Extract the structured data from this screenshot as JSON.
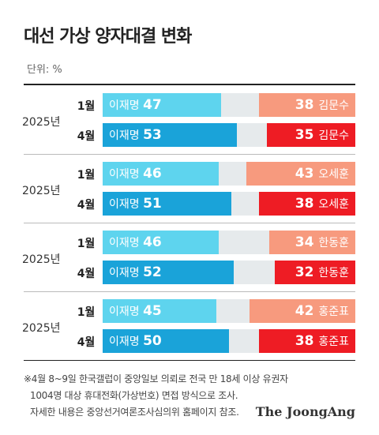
{
  "title": "대선 가상 양자대결 변화",
  "unit": "단위: %",
  "colors": {
    "lee_april": "#1aa3d9",
    "lee_jan": "#5ed4ee",
    "opp_april": "#ee1c24",
    "opp_jan": "#f79a7e",
    "undecided": "#e6eaec"
  },
  "chart_data": {
    "type": "bar",
    "stacked": true,
    "orientation": "horizontal",
    "xlim": [
      0,
      100
    ],
    "groups": [
      {
        "year": "2025년",
        "opponent": "김문수",
        "rows": [
          {
            "month": "1월",
            "lee_label": "이재명",
            "lee": 47,
            "opp": 38,
            "opp_label": "김문수"
          },
          {
            "month": "4월",
            "lee_label": "이재명",
            "lee": 53,
            "opp": 35,
            "opp_label": "김문수"
          }
        ]
      },
      {
        "year": "2025년",
        "opponent": "오세훈",
        "rows": [
          {
            "month": "1월",
            "lee_label": "이재명",
            "lee": 46,
            "opp": 43,
            "opp_label": "오세훈"
          },
          {
            "month": "4월",
            "lee_label": "이재명",
            "lee": 51,
            "opp": 38,
            "opp_label": "오세훈"
          }
        ]
      },
      {
        "year": "2025년",
        "opponent": "한동훈",
        "rows": [
          {
            "month": "1월",
            "lee_label": "이재명",
            "lee": 46,
            "opp": 34,
            "opp_label": "한동훈"
          },
          {
            "month": "4월",
            "lee_label": "이재명",
            "lee": 52,
            "opp": 32,
            "opp_label": "한동훈"
          }
        ]
      },
      {
        "year": "2025년",
        "opponent": "홍준표",
        "rows": [
          {
            "month": "1월",
            "lee_label": "이재명",
            "lee": 45,
            "opp": 42,
            "opp_label": "홍준표"
          },
          {
            "month": "4월",
            "lee_label": "이재명",
            "lee": 50,
            "opp": 38,
            "opp_label": "홍준표"
          }
        ]
      }
    ]
  },
  "footnote": [
    "※4월 8~9일 한국갤럽이 중앙일보 의뢰로 전국 만 18세 이상 유권자",
    "1004명 대상 휴대전화(가상번호) 면접 방식으로 조사.",
    "자세한 내용은 중앙선거여론조사심의위 홈페이지 참조."
  ],
  "brand": "The JoongAng"
}
